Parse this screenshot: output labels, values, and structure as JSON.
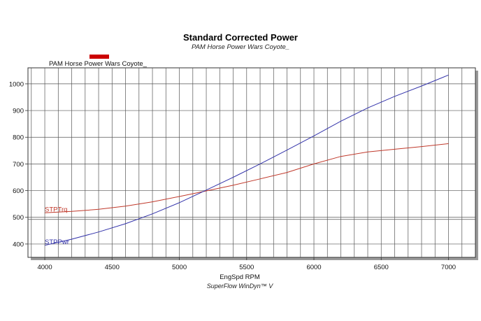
{
  "chart_data": {
    "type": "line",
    "title": "Standard Corrected Power",
    "subtitle": "PAM Horse Power Wars Coyote_",
    "legend": {
      "entry": "PAM Horse Power Wars Coyote_",
      "color": "#cc0000",
      "placement": "top-left"
    },
    "xlabel": "EngSpd RPM",
    "footer": "SuperFlow WinDyn™ V",
    "xlim": [
      3875,
      7200
    ],
    "ylim": [
      350,
      1060
    ],
    "xticks": [
      4000,
      4500,
      5000,
      5500,
      6000,
      6500,
      7000
    ],
    "yticks": [
      400,
      500,
      600,
      700,
      800,
      900,
      1000
    ],
    "xgrid_step": 100,
    "grid": true,
    "series": [
      {
        "name": "STPTrq",
        "color": "#c0392b",
        "x": [
          4000,
          4200,
          4400,
          4600,
          4800,
          5000,
          5200,
          5400,
          5600,
          5800,
          6000,
          6200,
          6400,
          6600,
          6800,
          7000
        ],
        "values": [
          517,
          522,
          530,
          542,
          558,
          578,
          599,
          620,
          644,
          668,
          700,
          728,
          745,
          755,
          765,
          776
        ]
      },
      {
        "name": "STPPwr",
        "color": "#3333aa",
        "x": [
          4000,
          4200,
          4400,
          4600,
          4800,
          5000,
          5200,
          5400,
          5600,
          5800,
          6000,
          6200,
          6400,
          6600,
          6800,
          7000
        ],
        "values": [
          395,
          418,
          445,
          476,
          513,
          555,
          602,
          650,
          700,
          752,
          805,
          860,
          910,
          953,
          992,
          1033
        ]
      }
    ]
  }
}
